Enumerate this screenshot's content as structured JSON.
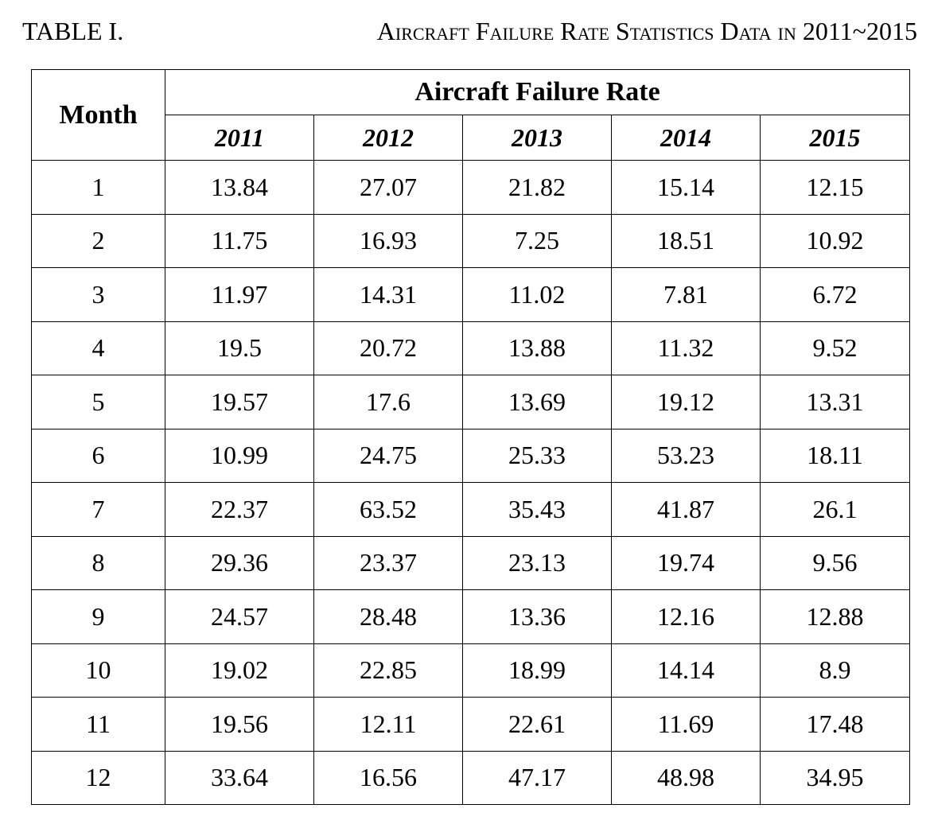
{
  "caption": {
    "label": "TABLE I.",
    "title": "Aircraft Failure Rate Statistics Data in 2011~2015"
  },
  "table": {
    "row_header": "Month",
    "group_header": "Aircraft Failure Rate",
    "years": [
      "2011",
      "2012",
      "2013",
      "2014",
      "2015"
    ],
    "rows": [
      {
        "month": "1",
        "values": [
          "13.84",
          "27.07",
          "21.82",
          "15.14",
          "12.15"
        ]
      },
      {
        "month": "2",
        "values": [
          "11.75",
          "16.93",
          "7.25",
          "18.51",
          "10.92"
        ]
      },
      {
        "month": "3",
        "values": [
          "11.97",
          "14.31",
          "11.02",
          "7.81",
          "6.72"
        ]
      },
      {
        "month": "4",
        "values": [
          "19.5",
          "20.72",
          "13.88",
          "11.32",
          "9.52"
        ]
      },
      {
        "month": "5",
        "values": [
          "19.57",
          "17.6",
          "13.69",
          "19.12",
          "13.31"
        ]
      },
      {
        "month": "6",
        "values": [
          "10.99",
          "24.75",
          "25.33",
          "53.23",
          "18.11"
        ]
      },
      {
        "month": "7",
        "values": [
          "22.37",
          "63.52",
          "35.43",
          "41.87",
          "26.1"
        ]
      },
      {
        "month": "8",
        "values": [
          "29.36",
          "23.37",
          "23.13",
          "19.74",
          "9.56"
        ]
      },
      {
        "month": "9",
        "values": [
          "24.57",
          "28.48",
          "13.36",
          "12.16",
          "12.88"
        ]
      },
      {
        "month": "10",
        "values": [
          "19.02",
          "22.85",
          "18.99",
          "14.14",
          "8.9"
        ]
      },
      {
        "month": "11",
        "values": [
          "19.56",
          "12.11",
          "22.61",
          "11.69",
          "17.48"
        ]
      },
      {
        "month": "12",
        "values": [
          "33.64",
          "16.56",
          "47.17",
          "48.98",
          "34.95"
        ]
      }
    ]
  }
}
